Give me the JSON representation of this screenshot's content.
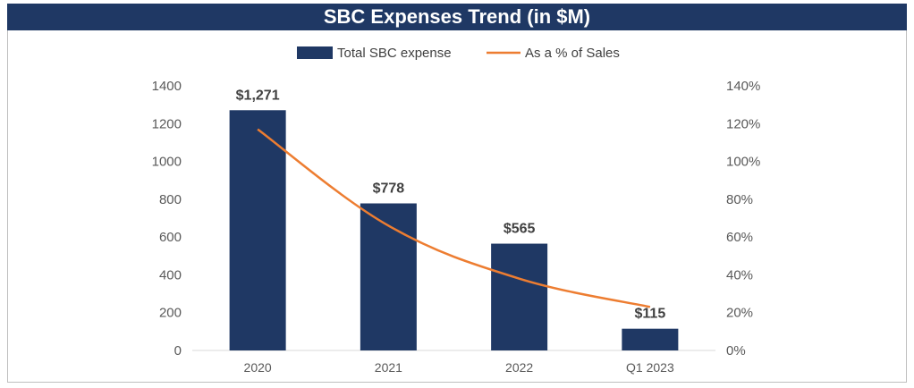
{
  "chart_data": {
    "type": "bar",
    "title": "SBC Expenses Trend (in $M)",
    "categories": [
      "2020",
      "2021",
      "2022",
      "Q1 2023"
    ],
    "series": [
      {
        "name": "Total SBC expense",
        "kind": "bar",
        "axis": "left",
        "values": [
          1271,
          778,
          565,
          115
        ],
        "labels": [
          "$1,271",
          "$778",
          "$565",
          "$115"
        ],
        "color": "#1f3864"
      },
      {
        "name": "As a % of Sales",
        "kind": "line",
        "axis": "right",
        "values": [
          117,
          66,
          38,
          23
        ],
        "color": "#ed7d31"
      }
    ],
    "left_axis": {
      "min": 0,
      "max": 1400,
      "ticks": [
        "0",
        "200",
        "400",
        "600",
        "800",
        "1000",
        "1200",
        "1400"
      ]
    },
    "right_axis": {
      "min": 0,
      "max": 140,
      "ticks": [
        "0%",
        "20%",
        "40%",
        "60%",
        "80%",
        "100%",
        "120%",
        "140%"
      ]
    },
    "legend": [
      "Total SBC expense",
      "As a % of Sales"
    ],
    "legend_position": "top"
  }
}
